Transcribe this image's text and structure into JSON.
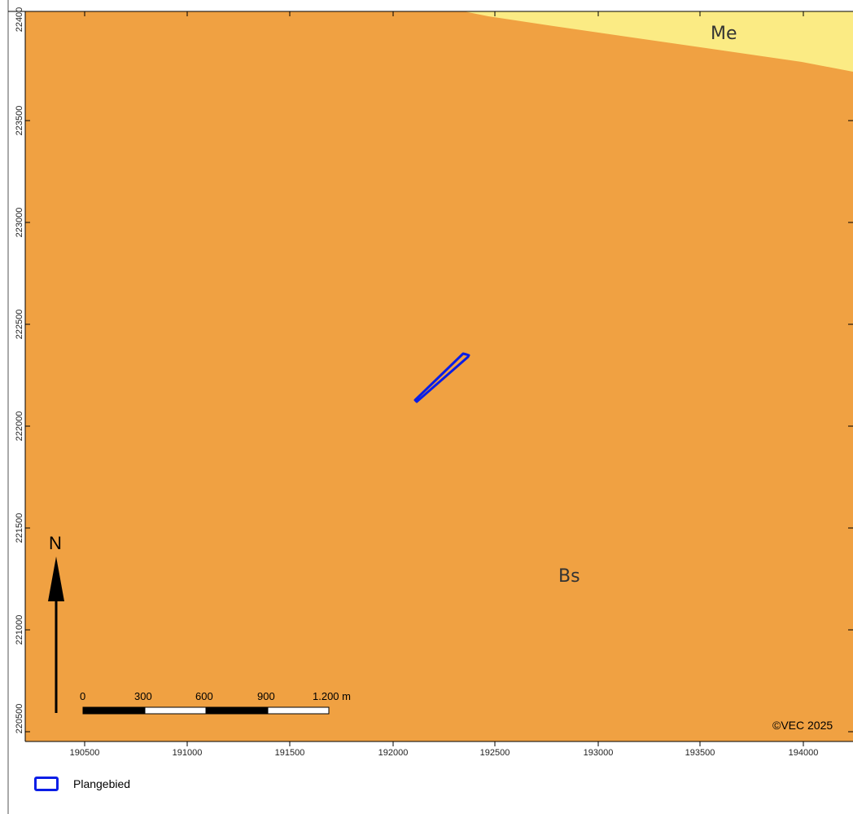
{
  "map": {
    "x_axis": {
      "ticks": [
        "190500",
        "191000",
        "191500",
        "192000",
        "192500",
        "193000",
        "193500",
        "194000"
      ]
    },
    "y_axis": {
      "ticks": [
        "22400",
        "223500",
        "223000",
        "222500",
        "222000",
        "221500",
        "221000",
        "220500"
      ]
    },
    "zones": [
      {
        "code": "Bs",
        "color": "#f0a142"
      },
      {
        "code": "Me",
        "color": "#fbeb84"
      }
    ],
    "north_arrow": {
      "label": "N"
    },
    "scale_bar": {
      "labels": [
        "0",
        "300",
        "600",
        "900",
        "1.200 m"
      ]
    },
    "copyright": "©VEC 2025",
    "plan_area_color": "#0a1ee6"
  },
  "legend": {
    "items": [
      {
        "label": "Plangebied",
        "color": "#0a1ee6"
      }
    ]
  }
}
